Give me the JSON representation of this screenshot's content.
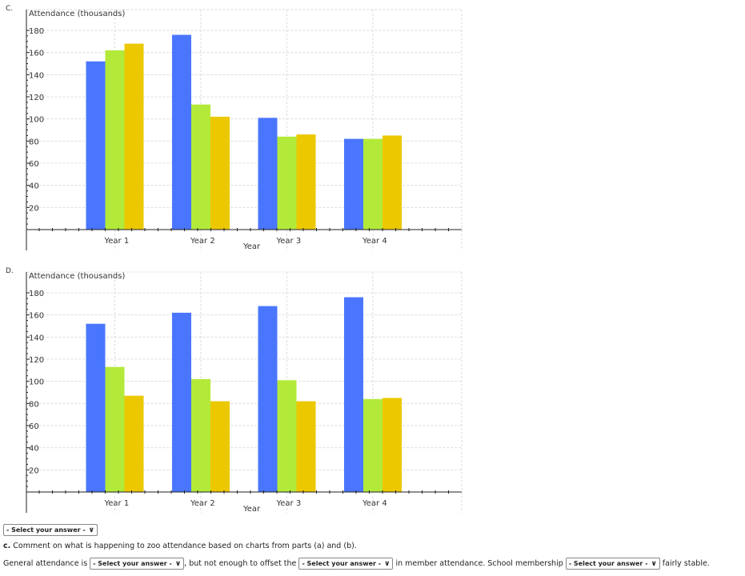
{
  "charts_labels": {
    "c": "C.",
    "d": "D."
  },
  "chart_data": [
    {
      "type": "bar",
      "ylabel": "Attendance (thousands)",
      "xlabel": "Year",
      "categories": [
        "Year   1",
        "Year   2",
        "Year   3",
        "Year   4"
      ],
      "yticks": [
        20,
        40,
        60,
        80,
        100,
        120,
        140,
        160,
        180
      ],
      "ylim": [
        0,
        180
      ],
      "grid": true,
      "series": [
        {
          "color": "#4a76ff",
          "values": [
            152,
            176,
            101,
            82
          ]
        },
        {
          "color": "#b3ea3a",
          "values": [
            162,
            113,
            84,
            82
          ]
        },
        {
          "color": "#ecc800",
          "values": [
            168,
            102,
            86,
            85
          ]
        }
      ]
    },
    {
      "type": "bar",
      "ylabel": "Attendance (thousands)",
      "xlabel": "Year",
      "categories": [
        "Year   1",
        "Year   2",
        "Year   3",
        "Year   4"
      ],
      "yticks": [
        20,
        40,
        60,
        80,
        100,
        120,
        140,
        160,
        180
      ],
      "ylim": [
        0,
        180
      ],
      "grid": true,
      "series": [
        {
          "color": "#4a76ff",
          "values": [
            152,
            162,
            168,
            176
          ]
        },
        {
          "color": "#b3ea3a",
          "values": [
            113,
            102,
            101,
            84
          ]
        },
        {
          "color": "#ecc800",
          "values": [
            87,
            82,
            82,
            85
          ]
        }
      ]
    }
  ],
  "select_placeholder": "- Select your answer -",
  "question_c": {
    "label": "c.",
    "text": " Comment on what is happening to zoo attendance based on charts from parts (a) and (b)."
  },
  "sentence": {
    "p1": "General attendance is",
    "p2": ", but not enough to offset the",
    "p3": "in member attendance. School membership",
    "p4": "fairly stable."
  }
}
